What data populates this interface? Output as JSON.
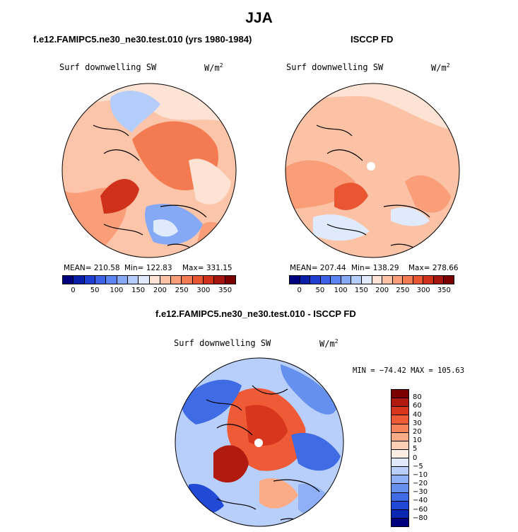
{
  "title": "JJA",
  "panels": [
    {
      "title": "f.e12.FAMIPC5.ne30_ne30.test.010 (yrs 1980-1984)",
      "variable": "Surf downwelling SW",
      "units": "W/m",
      "units_exp": "2",
      "stats": {
        "mean": "MEAN= 210.58",
        "min": "Min= 122.83",
        "max": "Max= 331.15"
      }
    },
    {
      "title": "ISCCP FD",
      "variable": "Surf downwelling SW",
      "units": "W/m",
      "units_exp": "2",
      "stats": {
        "mean": "MEAN= 207.44",
        "min": "Min= 138.29",
        "max": "Max= 278.66"
      }
    },
    {
      "title": "f.e12.FAMIPC5.ne30_ne30.test.010 - ISCCP FD",
      "variable": "Surf downwelling SW",
      "units": "W/m",
      "units_exp": "2",
      "stats": {
        "minmax": "MIN = −74.42  MAX = 105.63"
      }
    }
  ],
  "colorbar_abs": {
    "colors": [
      "#00007f",
      "#0a1fa8",
      "#1f3fd0",
      "#3b62e6",
      "#5a85f0",
      "#86a9f5",
      "#b4cdfb",
      "#dfebfd",
      "#fde3d3",
      "#fcc2a5",
      "#f99e78",
      "#f47a52",
      "#ea5532",
      "#d0311b",
      "#a5140e",
      "#7a0000"
    ],
    "ticks": [
      "0",
      "50",
      "100",
      "150",
      "200",
      "250",
      "300",
      "350"
    ]
  },
  "colorbar_diff": {
    "colors": [
      "#7a0000",
      "#b01a0f",
      "#d8361d",
      "#ee5b36",
      "#f7835a",
      "#fbab85",
      "#fdd0b6",
      "#fdeee4",
      "#dfeafd",
      "#b8cefb",
      "#8fb0f5",
      "#6590ee",
      "#3f6be5",
      "#2049d6",
      "#0a28b4",
      "#00007f"
    ],
    "ticks": [
      "80",
      "60",
      "40",
      "30",
      "20",
      "10",
      "5",
      "0",
      "−5",
      "−10",
      "−20",
      "−30",
      "−40",
      "−60",
      "−80"
    ]
  }
}
